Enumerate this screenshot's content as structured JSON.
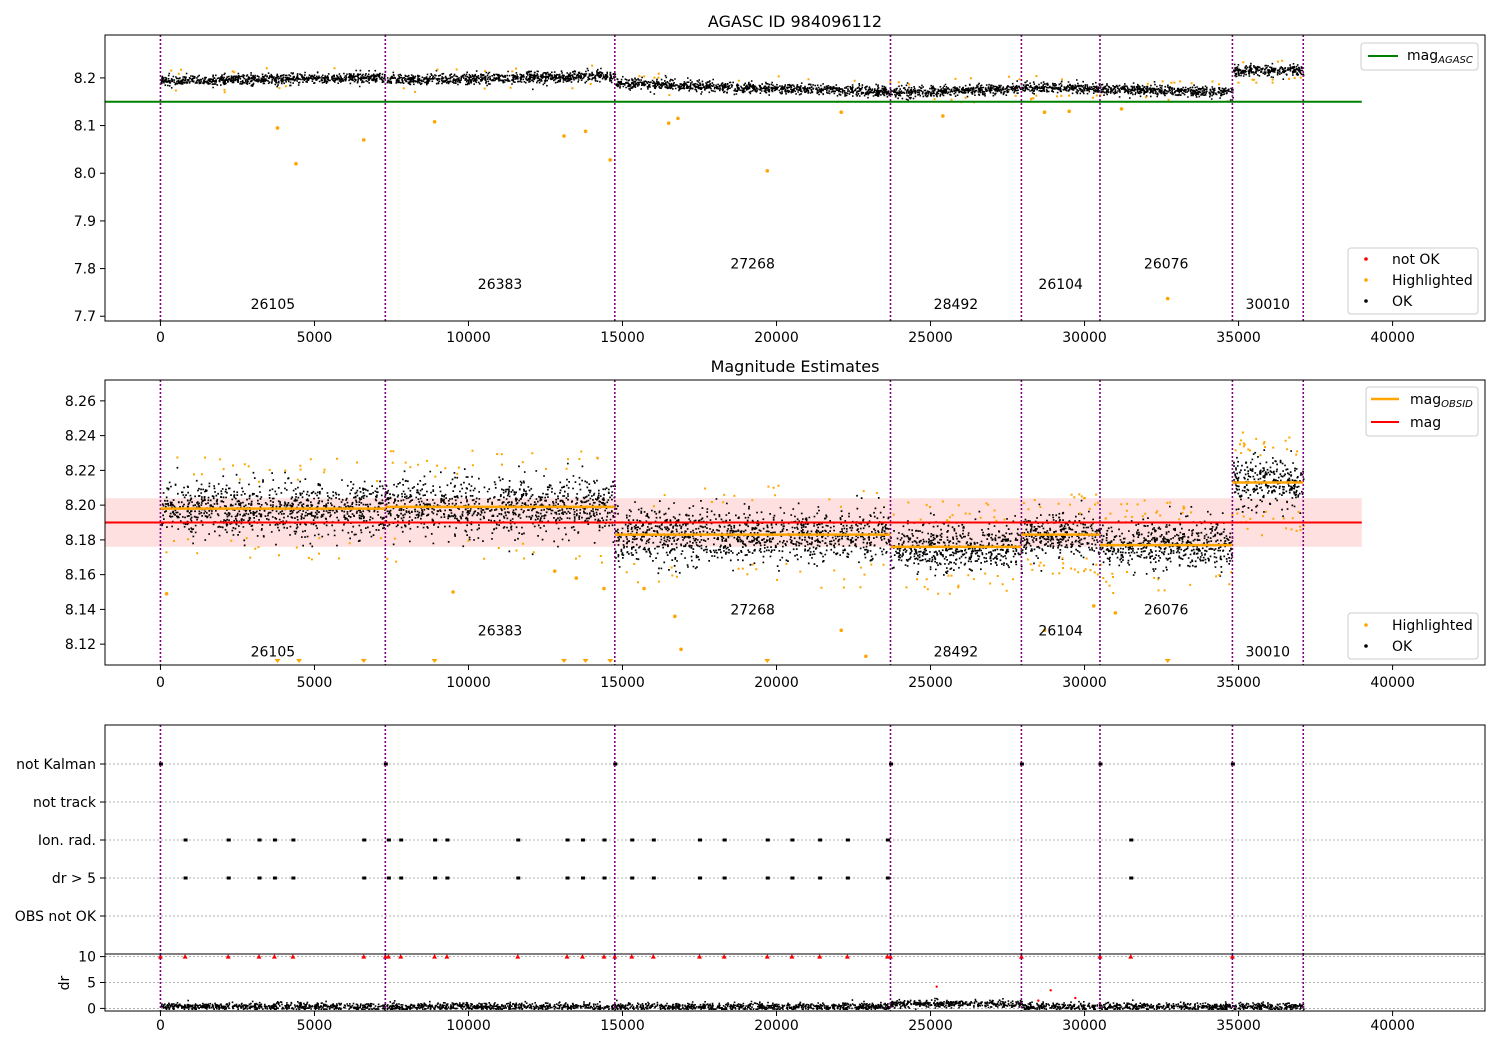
{
  "chart_data": [
    {
      "type": "scatter",
      "title": "AGASC ID 984096112",
      "xlabel": "",
      "ylabel": "",
      "xlim": [
        -1800,
        43000
      ],
      "ylim": [
        7.69,
        8.29
      ],
      "xticks": [
        0,
        5000,
        10000,
        15000,
        20000,
        25000,
        30000,
        35000,
        40000
      ],
      "yticks": [
        "7.7",
        "7.8",
        "7.9",
        "8.0",
        "8.1",
        "8.2"
      ],
      "reference_line": {
        "name": "mag_AGASC",
        "y": 8.15,
        "x_range": [
          -1800,
          39000
        ],
        "color": "#008000"
      },
      "obsid_boundaries": [
        0,
        7300,
        14750,
        23700,
        27950,
        30500,
        34800,
        37100
      ],
      "segments": [
        {
          "obsid": "26105",
          "x0": 0,
          "x1": 7300,
          "mag_start": 8.195,
          "mag_end": 8.203,
          "label_y": 7.715
        },
        {
          "obsid": "26383",
          "x0": 7300,
          "x1": 14750,
          "mag_start": 8.197,
          "mag_end": 8.205,
          "label_y": 7.757
        },
        {
          "obsid": "27268",
          "x0": 14750,
          "x1": 23700,
          "mag_start": 8.19,
          "mag_end": 8.172,
          "label_y": 7.8
        },
        {
          "obsid": "28492",
          "x0": 23700,
          "x1": 27950,
          "mag_start": 8.17,
          "mag_end": 8.18,
          "label_y": 7.715
        },
        {
          "obsid": "26104",
          "x0": 27950,
          "x1": 30500,
          "mag_start": 8.182,
          "mag_end": 8.18,
          "label_y": 7.757
        },
        {
          "obsid": "26076",
          "x0": 30500,
          "x1": 34800,
          "mag_start": 8.178,
          "mag_end": 8.172,
          "label_y": 7.8
        },
        {
          "obsid": "30010",
          "x0": 34800,
          "x1": 37100,
          "mag_start": 8.215,
          "mag_end": 8.218,
          "label_y": 7.715
        }
      ],
      "highlighted_outliers": [
        {
          "x": 3800,
          "y": 8.095
        },
        {
          "x": 4400,
          "y": 8.02
        },
        {
          "x": 6600,
          "y": 8.07
        },
        {
          "x": 8900,
          "y": 8.108
        },
        {
          "x": 13100,
          "y": 8.078
        },
        {
          "x": 13800,
          "y": 8.088
        },
        {
          "x": 14600,
          "y": 8.028
        },
        {
          "x": 16500,
          "y": 8.105
        },
        {
          "x": 16800,
          "y": 8.115
        },
        {
          "x": 19700,
          "y": 8.005
        },
        {
          "x": 22100,
          "y": 8.128
        },
        {
          "x": 25400,
          "y": 8.12
        },
        {
          "x": 28700,
          "y": 8.128
        },
        {
          "x": 29500,
          "y": 8.13
        },
        {
          "x": 31200,
          "y": 8.135
        },
        {
          "x": 32700,
          "y": 7.737
        }
      ],
      "legend": {
        "lines": [
          {
            "name": "mag",
            "subscript": "AGASC",
            "color": "#008000"
          }
        ],
        "points": [
          {
            "name": "not OK",
            "color": "#ff0000"
          },
          {
            "name": "Highlighted",
            "color": "#ffa500"
          },
          {
            "name": "OK",
            "color": "#000000"
          }
        ]
      }
    },
    {
      "type": "scatter",
      "title": "Magnitude Estimates",
      "xlabel": "",
      "ylabel": "",
      "xlim": [
        -1800,
        43000
      ],
      "ylim": [
        8.108,
        8.272
      ],
      "xticks": [
        0,
        5000,
        10000,
        15000,
        20000,
        25000,
        30000,
        35000,
        40000
      ],
      "yticks": [
        "8.12",
        "8.14",
        "8.16",
        "8.18",
        "8.20",
        "8.22",
        "8.24",
        "8.26"
      ],
      "overall_mag": {
        "name": "mag",
        "y": 8.19,
        "band": [
          8.176,
          8.204
        ],
        "x_range": [
          -1800,
          39000
        ],
        "color": "#ff0000"
      },
      "segments": [
        {
          "obsid": "26105",
          "x0": 0,
          "x1": 7300,
          "mag_obsid": 8.198,
          "spread": 0.01,
          "label_y": 8.113
        },
        {
          "obsid": "26383",
          "x0": 7300,
          "x1": 14750,
          "mag_obsid": 8.199,
          "spread": 0.011,
          "label_y": 8.125
        },
        {
          "obsid": "27268",
          "x0": 14750,
          "x1": 23700,
          "mag_obsid": 8.183,
          "spread": 0.01,
          "label_y": 8.137
        },
        {
          "obsid": "28492",
          "x0": 23700,
          "x1": 27950,
          "mag_obsid": 8.176,
          "spread": 0.009,
          "label_y": 8.113
        },
        {
          "obsid": "26104",
          "x0": 27950,
          "x1": 30500,
          "mag_obsid": 8.183,
          "spread": 0.008,
          "label_y": 8.125
        },
        {
          "obsid": "26076",
          "x0": 30500,
          "x1": 34800,
          "mag_obsid": 8.177,
          "spread": 0.009,
          "label_y": 8.137
        },
        {
          "obsid": "30010",
          "x0": 34800,
          "x1": 37100,
          "mag_obsid": 8.213,
          "spread": 0.01,
          "label_y": 8.113
        }
      ],
      "highlighted_outliers": [
        {
          "x": 200,
          "y": 8.149
        },
        {
          "x": 9500,
          "y": 8.15
        },
        {
          "x": 12800,
          "y": 8.162
        },
        {
          "x": 13500,
          "y": 8.158
        },
        {
          "x": 14400,
          "y": 8.152
        },
        {
          "x": 15700,
          "y": 8.152
        },
        {
          "x": 16700,
          "y": 8.136
        },
        {
          "x": 16900,
          "y": 8.117
        },
        {
          "x": 22100,
          "y": 8.128
        },
        {
          "x": 22900,
          "y": 8.113
        },
        {
          "x": 28700,
          "y": 8.128
        },
        {
          "x": 30300,
          "y": 8.142
        },
        {
          "x": 31000,
          "y": 8.138
        }
      ],
      "below_range_markers": [
        3800,
        4500,
        6600,
        8900,
        13100,
        13800,
        14600,
        19700,
        32700
      ],
      "legend": {
        "lines": [
          {
            "name": "mag",
            "subscript": "OBSID",
            "color": "#ffa500"
          },
          {
            "name": "mag",
            "subscript": "",
            "color": "#ff0000"
          }
        ],
        "points": [
          {
            "name": "Highlighted",
            "color": "#ffa500"
          },
          {
            "name": "OK",
            "color": "#000000"
          }
        ]
      }
    },
    {
      "type": "scatter",
      "title": "",
      "xlabel": "",
      "ylabel": "",
      "xlim": [
        -1800,
        43000
      ],
      "flag_rows": [
        "not Kalman",
        "not track",
        "Ion. rad.",
        "dr > 5",
        "OBS not OK"
      ],
      "not_kalman_x": [
        0,
        7300,
        14750,
        23700,
        27950,
        30500,
        34800
      ],
      "ion_rad_x": [
        800,
        2200,
        3200,
        3700,
        4300,
        6600,
        7400,
        7800,
        8900,
        9300,
        11600,
        13200,
        13700,
        14400,
        15300,
        16000,
        17500,
        18300,
        19700,
        20500,
        21400,
        22300,
        23600,
        31500
      ],
      "dr5_x": [
        800,
        2200,
        3200,
        3700,
        4300,
        6600,
        7400,
        7800,
        8900,
        9300,
        11600,
        13200,
        13700,
        14400,
        15300,
        16000,
        17500,
        18300,
        19700,
        20500,
        21400,
        22300,
        23600,
        31500
      ]
    },
    {
      "type": "scatter",
      "title": "",
      "xlabel": "",
      "ylabel": "dr",
      "xlim": [
        -1800,
        43000
      ],
      "ylim": [
        -0.5,
        10.5
      ],
      "xticks": [
        0,
        5000,
        10000,
        15000,
        20000,
        25000,
        30000,
        35000,
        40000
      ],
      "yticks": [
        "0",
        "5",
        "10"
      ],
      "clipped_markers_x": [
        0,
        800,
        2200,
        3200,
        3700,
        4300,
        6600,
        7300,
        7400,
        7800,
        8900,
        9300,
        11600,
        13200,
        13700,
        14400,
        14750,
        15300,
        16000,
        17500,
        18300,
        19700,
        20500,
        21400,
        22300,
        23600,
        23700,
        27950,
        30500,
        31500,
        34800
      ],
      "isolated_points": [
        {
          "x": 25200,
          "y": 4.2
        },
        {
          "x": 28900,
          "y": 3.5
        },
        {
          "x": 28500,
          "y": 1.5
        },
        {
          "x": 29700,
          "y": 2.0
        },
        {
          "x": 30500,
          "y": 1.0
        }
      ]
    }
  ]
}
